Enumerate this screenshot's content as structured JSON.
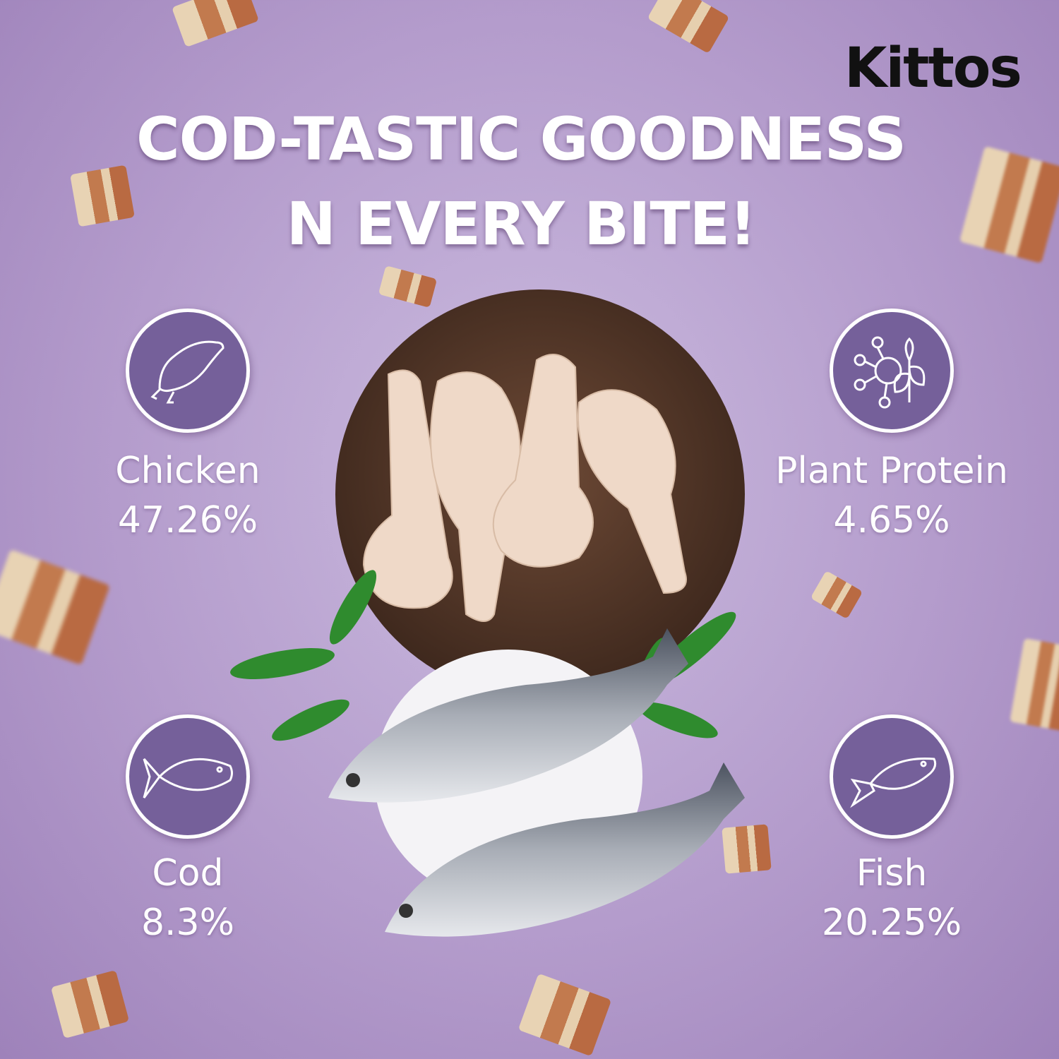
{
  "brand": {
    "logo": "Kittos"
  },
  "headline": {
    "line1": "COD-TASTIC GOODNESS",
    "line2": "N EVERY BITE!"
  },
  "ingredients": [
    {
      "name": "Chicken",
      "percent": "47.26%",
      "icon": "chicken-icon"
    },
    {
      "name": "Plant Protein",
      "percent": "4.65%",
      "icon": "molecule-plant-icon"
    },
    {
      "name": "Cod",
      "percent": "8.3%",
      "icon": "cod-fish-icon"
    },
    {
      "name": "Fish",
      "percent": "20.25%",
      "icon": "fish-icon"
    }
  ],
  "colors": {
    "background": "#b49ccc",
    "badge": "#75609a",
    "text": "#ffffff",
    "logo": "#111111"
  }
}
